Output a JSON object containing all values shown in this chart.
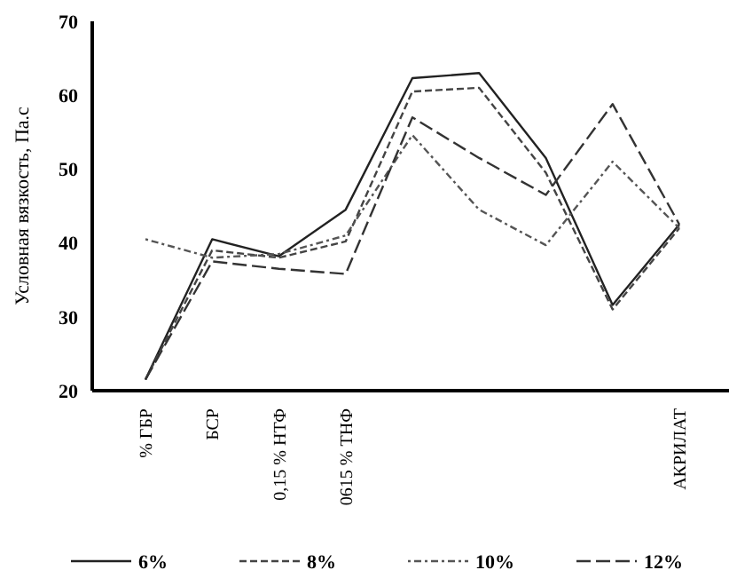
{
  "chart_data": {
    "type": "line",
    "ylabel": "Условная вязкость, Па.с",
    "categories": [
      "% ГБР",
      "БСР",
      "0,15 % НТФ",
      "0615 % ТНФ",
      null,
      null,
      null,
      null,
      "АКРИЛАТ"
    ],
    "ylim": [
      20,
      70
    ],
    "yticks": [
      20,
      30,
      40,
      50,
      60,
      70
    ],
    "legend": "bottom",
    "marker": "none",
    "series": [
      {
        "name": "6%",
        "color": "#222222",
        "line_style": "solid",
        "values": [
          21.5,
          40.5,
          38.2,
          44.5,
          62.3,
          63,
          51.5,
          31.6,
          42.5
        ]
      },
      {
        "name": "8%",
        "color": "#444444",
        "line_style": "dashed",
        "values": [
          21.5,
          39,
          38,
          40.2,
          60.5,
          61,
          49.5,
          31,
          42
        ]
      },
      {
        "name": "10%",
        "color": "#555555",
        "line_style": "dotted",
        "values": [
          40.5,
          38,
          38.5,
          41,
          54.6,
          44.5,
          39.7,
          51,
          42
        ]
      },
      {
        "name": "12%",
        "color": "#333333",
        "line_style": "longdash",
        "values": [
          21.5,
          37.5,
          36.5,
          35.8,
          57,
          51.5,
          46.5,
          58.8,
          42.5
        ]
      }
    ]
  }
}
